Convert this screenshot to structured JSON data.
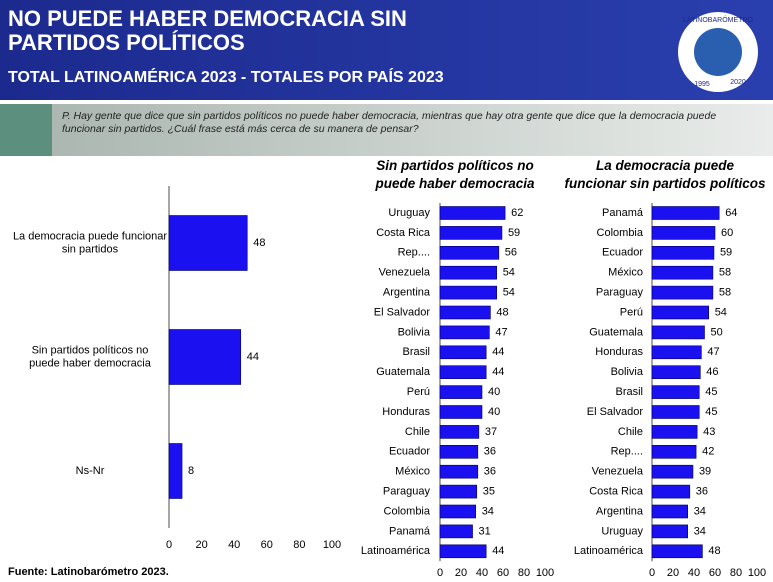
{
  "header": {
    "title": "NO PUEDE HABER DEMOCRACIA SIN PARTIDOS POLÍTICOS",
    "subtitle": "TOTAL LATINOAMÉRICA 2023 - TOTALES POR PAÍS 2023"
  },
  "logo": {
    "name": "LATINOBARÓMETRO",
    "years": [
      "1995",
      "2020"
    ]
  },
  "question": "P. Hay gente que dice que sin partidos políticos no puede haber democracia, mientras que hay otra gente que dice que la democracia puede funcionar sin partidos. ¿Cuál frase está más cerca de su manera de pensar?",
  "source": "Fuente: Latinobarómetro 2023.",
  "chart_data": [
    {
      "type": "hbar",
      "categories": [
        "La democracia puede funcionar sin partidos",
        "Sin partidos políticos no puede haber democracia",
        "Ns-Nr"
      ],
      "values": [
        48,
        44,
        8
      ],
      "color": "#1a10f0",
      "xlim": [
        0,
        100
      ],
      "xticks": [
        0,
        20,
        40,
        60,
        80,
        100
      ]
    },
    {
      "type": "hbar",
      "title": "Sin partidos políticos no puede haber democracia",
      "categories": [
        "Uruguay",
        "Costa Rica",
        "Rep....",
        "Venezuela",
        "Argentina",
        "El Salvador",
        "Bolivia",
        "Brasil",
        "Guatemala",
        "Perú",
        "Honduras",
        "Chile",
        "Ecuador",
        "México",
        "Paraguay",
        "Colombia",
        "Panamá",
        "Latinoamérica"
      ],
      "values": [
        62,
        59,
        56,
        54,
        54,
        48,
        47,
        44,
        44,
        40,
        40,
        37,
        36,
        36,
        35,
        34,
        31,
        44
      ],
      "color": "#1a10f0",
      "xlim": [
        0,
        100
      ],
      "xticks": [
        0,
        20,
        40,
        60,
        80,
        100
      ]
    },
    {
      "type": "hbar",
      "title": "La democracia puede funcionar sin partidos políticos",
      "categories": [
        "Panamá",
        "Colombia",
        "Ecuador",
        "México",
        "Paraguay",
        "Perú",
        "Guatemala",
        "Honduras",
        "Bolivia",
        "Brasil",
        "El Salvador",
        "Chile",
        "Rep....",
        "Venezuela",
        "Costa Rica",
        "Argentina",
        "Uruguay",
        "Latinoamérica"
      ],
      "values": [
        64,
        60,
        59,
        58,
        58,
        54,
        50,
        47,
        46,
        45,
        45,
        43,
        42,
        39,
        36,
        34,
        34,
        48
      ],
      "color": "#1a10f0",
      "xlim": [
        0,
        100
      ],
      "xticks": [
        0,
        20,
        40,
        60,
        80,
        100
      ]
    }
  ]
}
